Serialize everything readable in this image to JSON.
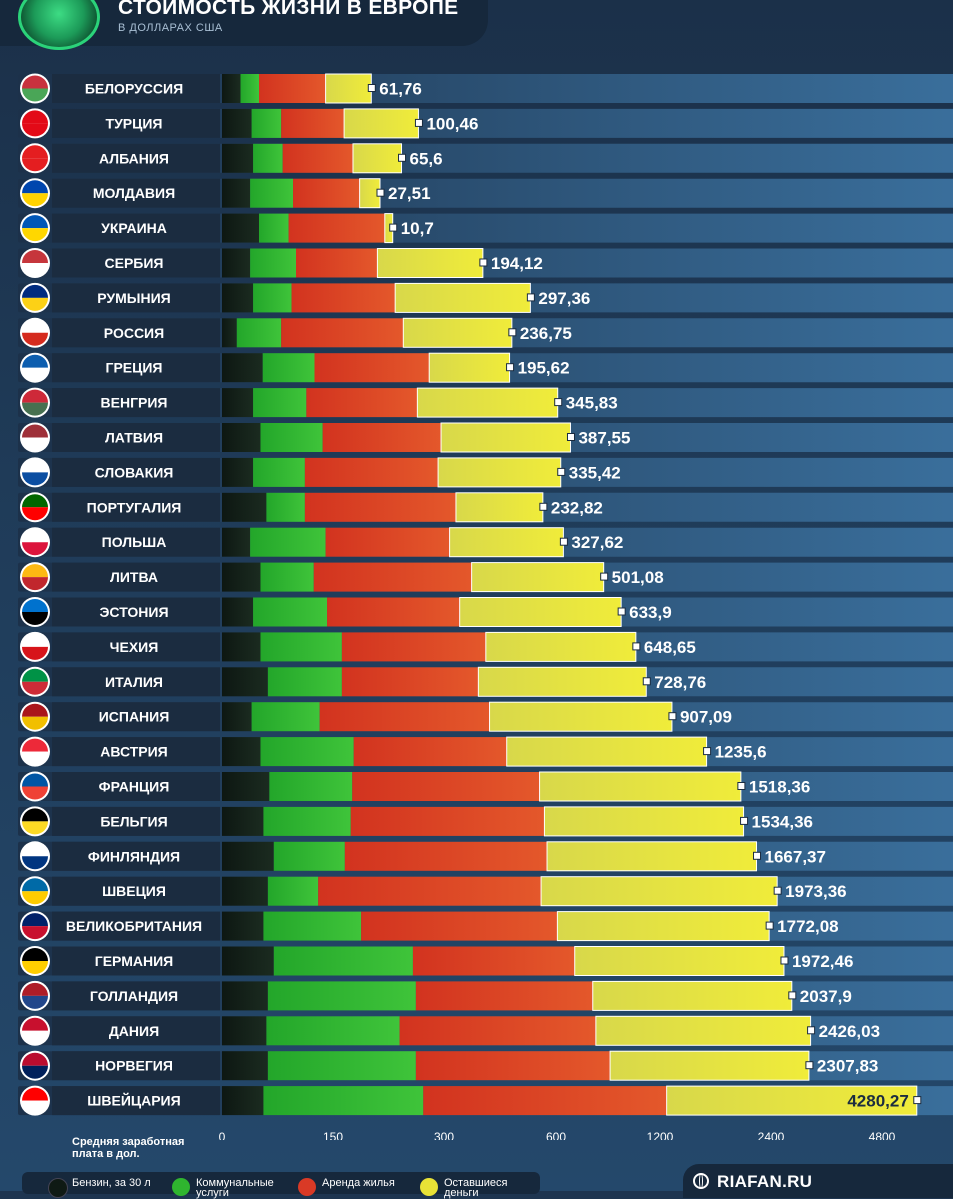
{
  "header": {
    "title": "СТОИМОСТЬ ЖИЗНИ В ЕВРОПЕ",
    "subtitle": "В ДОЛЛАРАХ США"
  },
  "footer": {
    "salary_label": "Средняя заработная плата в дол.",
    "site": "RIAFAN.RU",
    "legend": [
      {
        "label": "Бензин, за 30 л",
        "color": "#0f1a14"
      },
      {
        "label": "Коммунальные услуги",
        "color": "#2fb52f"
      },
      {
        "label": "Аренда жилья",
        "color": "#d93a26"
      },
      {
        "label": "Оставшиеся деньги",
        "color": "#e8e236"
      }
    ]
  },
  "chart_data": {
    "type": "bar",
    "stacked": true,
    "orientation": "horizontal",
    "x_ticks": [
      "0",
      "150",
      "300",
      "600",
      "1200",
      "2400",
      "4800"
    ],
    "categories": [
      "БЕЛОРУССИЯ",
      "ТУРЦИЯ",
      "АЛБАНИЯ",
      "МОЛДАВИЯ",
      "УКРАИНА",
      "СЕРБИЯ",
      "РУМЫНИЯ",
      "РОССИЯ",
      "ГРЕЦИЯ",
      "ВЕНГРИЯ",
      "ЛАТВИЯ",
      "СЛОВАКИЯ",
      "ПОРТУГАЛИЯ",
      "ПОЛЬША",
      "ЛИТВА",
      "ЭСТОНИЯ",
      "ЧЕХИЯ",
      "ИТАЛИЯ",
      "ИСПАНИЯ",
      "АВСТРИЯ",
      "ФРАНЦИЯ",
      "БЕЛЬГИЯ",
      "ФИНЛЯНДИЯ",
      "ШВЕЦИЯ",
      "ВЕЛИКОБРИТАНИЯ",
      "ГЕРМАНИЯ",
      "ГОЛЛАНДИЯ",
      "ДАНИЯ",
      "НОРВЕГИЯ",
      "ШВЕЙЦАРИЯ"
    ],
    "remaining_labels": [
      "61,76",
      "100,46",
      "65,6",
      "27,51",
      "10,7",
      "194,12",
      "297,36",
      "236,75",
      "195,62",
      "345,83",
      "387,55",
      "335,42",
      "232,82",
      "327,62",
      "501,08",
      "633,9",
      "648,65",
      "728,76",
      "907,09",
      "1235,6",
      "1518,36",
      "1534,36",
      "1667,37",
      "1973,36",
      "1772,08",
      "1972,46",
      "2037,9",
      "2426,03",
      "2307,83",
      "4280,27"
    ],
    "series": [
      {
        "name": "Бензин, за 30 л",
        "color": "#0f1a14",
        "values": [
          25,
          40,
          42,
          38,
          50,
          38,
          42,
          20,
          55,
          42,
          52,
          42,
          60,
          38,
          52,
          42,
          52,
          62,
          40,
          52,
          64,
          56,
          70,
          62,
          56,
          70,
          62,
          60,
          62,
          56
        ]
      },
      {
        "name": "Коммунальные услуги",
        "color": "#2fb52f",
        "values": [
          25,
          40,
          40,
          58,
          40,
          62,
          52,
          60,
          70,
          72,
          84,
          70,
          52,
          102,
          72,
          100,
          110,
          100,
          92,
          126,
          112,
          118,
          96,
          68,
          132,
          188,
          200,
          180,
          200,
          216
        ]
      },
      {
        "name": "Аренда жилья",
        "color": "#d93a26",
        "values": [
          90,
          85,
          95,
          90,
          130,
          110,
          140,
          165,
          155,
          150,
          160,
          180,
          220,
          175,
          250,
          200,
          250,
          230,
          290,
          290,
          380,
          395,
          410,
          430,
          420,
          450,
          550,
          590,
          650,
          1000
        ]
      },
      {
        "name": "Оставшиеся деньги",
        "color": "#e8e236",
        "values": [
          61.76,
          100.46,
          65.6,
          27.51,
          10.7,
          194.12,
          297.36,
          236.75,
          195.62,
          345.83,
          387.55,
          335.42,
          232.82,
          327.62,
          501.08,
          633.9,
          648.65,
          728.76,
          907.09,
          1235.6,
          1518.36,
          1534.36,
          1667.37,
          1973.36,
          1772.08,
          1972.46,
          2037.9,
          2426.03,
          2307.83,
          4280.27
        ]
      }
    ],
    "flags": [
      "belarus-flag-icon",
      "turkey-flag-icon",
      "albania-flag-icon",
      "moldova-flag-icon",
      "ukraine-flag-icon",
      "serbia-flag-icon",
      "romania-flag-icon",
      "russia-flag-icon",
      "greece-flag-icon",
      "hungary-flag-icon",
      "latvia-flag-icon",
      "slovakia-flag-icon",
      "portugal-flag-icon",
      "poland-flag-icon",
      "lithuania-flag-icon",
      "estonia-flag-icon",
      "czechia-flag-icon",
      "italy-flag-icon",
      "spain-flag-icon",
      "austria-flag-icon",
      "france-flag-icon",
      "belgium-flag-icon",
      "finland-flag-icon",
      "sweden-flag-icon",
      "uk-flag-icon",
      "germany-flag-icon",
      "netherlands-flag-icon",
      "denmark-flag-icon",
      "norway-flag-icon",
      "switzerland-flag-icon"
    ]
  }
}
